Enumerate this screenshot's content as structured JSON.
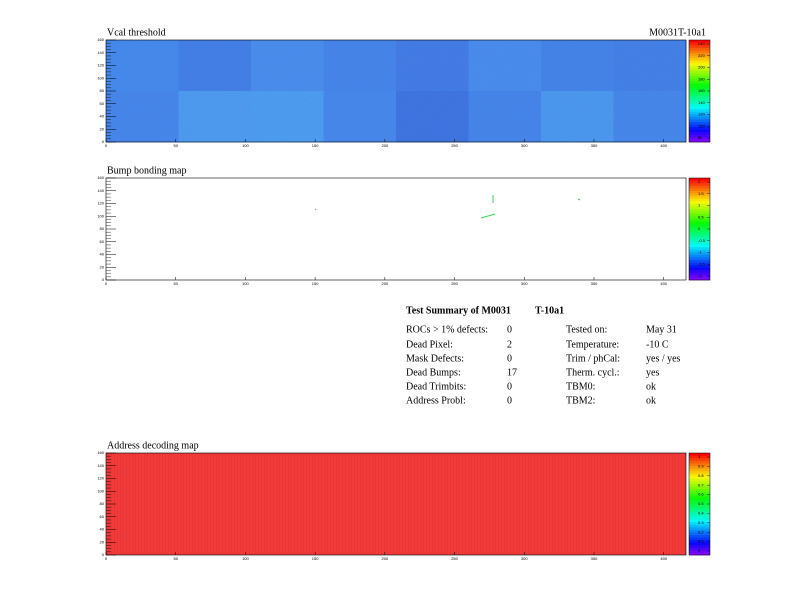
{
  "module": "M0031T-10a1",
  "panels": [
    {
      "title": "Vcal threshold",
      "xlim": [
        0,
        416
      ],
      "ylim": [
        0,
        160
      ],
      "xticks": [
        0,
        50,
        100,
        150,
        200,
        250,
        300,
        350,
        400
      ],
      "yticks": [
        0,
        20,
        40,
        60,
        80,
        100,
        120,
        140,
        160
      ],
      "scale": [
        240,
        220,
        200,
        180,
        160,
        140,
        120,
        100,
        80
      ]
    },
    {
      "title": "Bump bonding map",
      "xlim": [
        0,
        416
      ],
      "ylim": [
        0,
        160
      ],
      "xticks": [
        0,
        50,
        100,
        150,
        200,
        250,
        300,
        350,
        400
      ],
      "yticks": [
        0,
        20,
        40,
        60,
        80,
        100,
        120,
        140,
        160
      ],
      "scale": [
        2,
        1.5,
        1,
        0.5,
        0,
        -0.5,
        -1,
        -1.5,
        -2
      ]
    },
    {
      "title": "Address decoding map",
      "xlim": [
        0,
        416
      ],
      "ylim": [
        0,
        160
      ],
      "xticks": [
        0,
        50,
        100,
        150,
        200,
        250,
        300,
        350,
        400
      ],
      "yticks": [
        0,
        20,
        40,
        60,
        80,
        100,
        120,
        140,
        160
      ],
      "scale": [
        1,
        0.9,
        0.8,
        0.7,
        0.6,
        0.5,
        0.4,
        0.3,
        0.2,
        0.1,
        0
      ]
    }
  ],
  "summary": {
    "title": "Test Summary of M0031",
    "subtitle": "T-10a1",
    "left": [
      [
        "ROCs > 1% defects:",
        "0"
      ],
      [
        "Dead Pixel:",
        "2"
      ],
      [
        "Mask Defects:",
        "0"
      ],
      [
        "Dead Bumps:",
        "17"
      ],
      [
        "Dead Trimbits:",
        "0"
      ],
      [
        "Address Probl:",
        "0"
      ]
    ],
    "right": [
      [
        "Tested on:",
        "May 31"
      ],
      [
        "Temperature:",
        "-10 C"
      ],
      [
        "Trim / phCal:",
        "yes / yes"
      ],
      [
        "Therm. cycl.:",
        "yes"
      ],
      [
        "TBM0:",
        "ok"
      ],
      [
        "TBM2:",
        "ok"
      ]
    ]
  }
}
